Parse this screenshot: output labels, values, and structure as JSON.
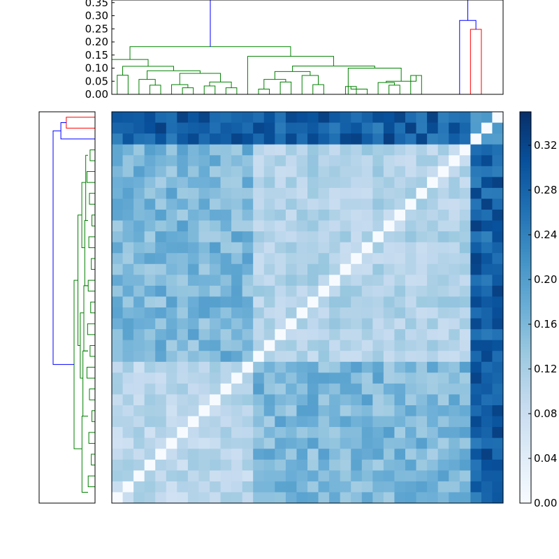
{
  "chart_data": [
    {
      "type": "dendrogram",
      "orientation": "top",
      "ylim": [
        0,
        0.36
      ],
      "ticks": [
        0.0,
        0.05,
        0.1,
        0.15,
        0.2,
        0.25,
        0.3,
        0.35
      ],
      "tick_labels": [
        "0.00",
        "0.05",
        "0.10",
        "0.15",
        "0.20",
        "0.25",
        "0.30",
        "0.35"
      ],
      "leaf_count": 36,
      "colors": {
        "cluster_1": "#008000",
        "cluster_2": "#ff0000",
        "root": "#0000ff"
      },
      "links": [
        [
          0.5,
          0.5,
          0.073,
          "g"
        ],
        [
          3.5,
          4.5,
          0.035,
          "g"
        ],
        [
          2.5,
          4.0,
          0.057,
          "g"
        ],
        [
          6.5,
          7.5,
          0.025,
          "g"
        ],
        [
          5.5,
          7.0,
          0.037,
          "g"
        ],
        [
          8.5,
          9.5,
          0.032,
          "g"
        ],
        [
          10.5,
          11.5,
          0.025,
          "g"
        ],
        [
          9.0,
          11.0,
          0.047,
          "g"
        ],
        [
          6.25,
          10.0,
          0.08,
          "g"
        ],
        [
          3.25,
          8.125,
          0.09,
          "g"
        ],
        [
          1.5,
          5.6875,
          0.107,
          "g"
        ],
        [
          0.5,
          3.59375,
          0.133,
          "g"
        ],
        [
          13.5,
          14.5,
          0.02,
          "g"
        ],
        [
          15.5,
          16.5,
          0.047,
          "g"
        ],
        [
          14.0,
          16.0,
          0.057,
          "g"
        ],
        [
          18.5,
          19.5,
          0.037,
          "g"
        ],
        [
          17.5,
          19.0,
          0.072,
          "g"
        ],
        [
          15.0,
          18.25,
          0.087,
          "g"
        ],
        [
          21.5,
          22.5,
          0.03,
          "g"
        ],
        [
          22.0,
          23.5,
          0.02,
          "g"
        ],
        [
          25.5,
          26.5,
          0.035,
          "g"
        ],
        [
          24.5,
          26.0,
          0.045,
          "g"
        ],
        [
          27.5,
          28.5,
          0.072,
          "g"
        ],
        [
          25.25,
          28.0,
          0.05,
          "g"
        ],
        [
          21.75,
          26.625,
          0.1,
          "g"
        ],
        [
          16.625,
          24.1875,
          0.108,
          "g"
        ],
        [
          12.5,
          20.40625,
          0.145,
          "g"
        ],
        [
          2.046875,
          16.453125,
          0.182,
          "g"
        ],
        [
          30.5,
          31.5,
          0.282,
          "b"
        ],
        [
          32.5,
          33.5,
          0.248,
          "r"
        ],
        [
          31.0,
          33.0,
          0.282,
          "b"
        ],
        [
          9.25,
          32.0,
          0.36,
          "b"
        ]
      ]
    },
    {
      "type": "dendrogram",
      "orientation": "left",
      "leaf_count": 36,
      "colors": {
        "cluster_1": "#ff0000",
        "cluster_2": "#008000",
        "root": "#0000ff"
      }
    },
    {
      "type": "heatmap",
      "colormap": "Blues",
      "rows": 36,
      "cols": 36,
      "vmin": 0.0,
      "vmax": 0.35,
      "colorbar_ticks": [
        0.0,
        0.04,
        0.08,
        0.12,
        0.16,
        0.2,
        0.24,
        0.28,
        0.32
      ],
      "colorbar_tick_labels": [
        "0.00",
        "0.04",
        "0.08",
        "0.12",
        "0.16",
        "0.20",
        "0.24",
        "0.28",
        "0.32"
      ],
      "description_of_blocks": {
        "diagonal": 0.0,
        "top_rows_0_2": 0.27,
        "right_cols_33_35": 0.27,
        "cluster_a_rows_3_22": 0.1,
        "cluster_b_rows_23_35": 0.08,
        "cross_cluster": 0.16
      }
    }
  ]
}
